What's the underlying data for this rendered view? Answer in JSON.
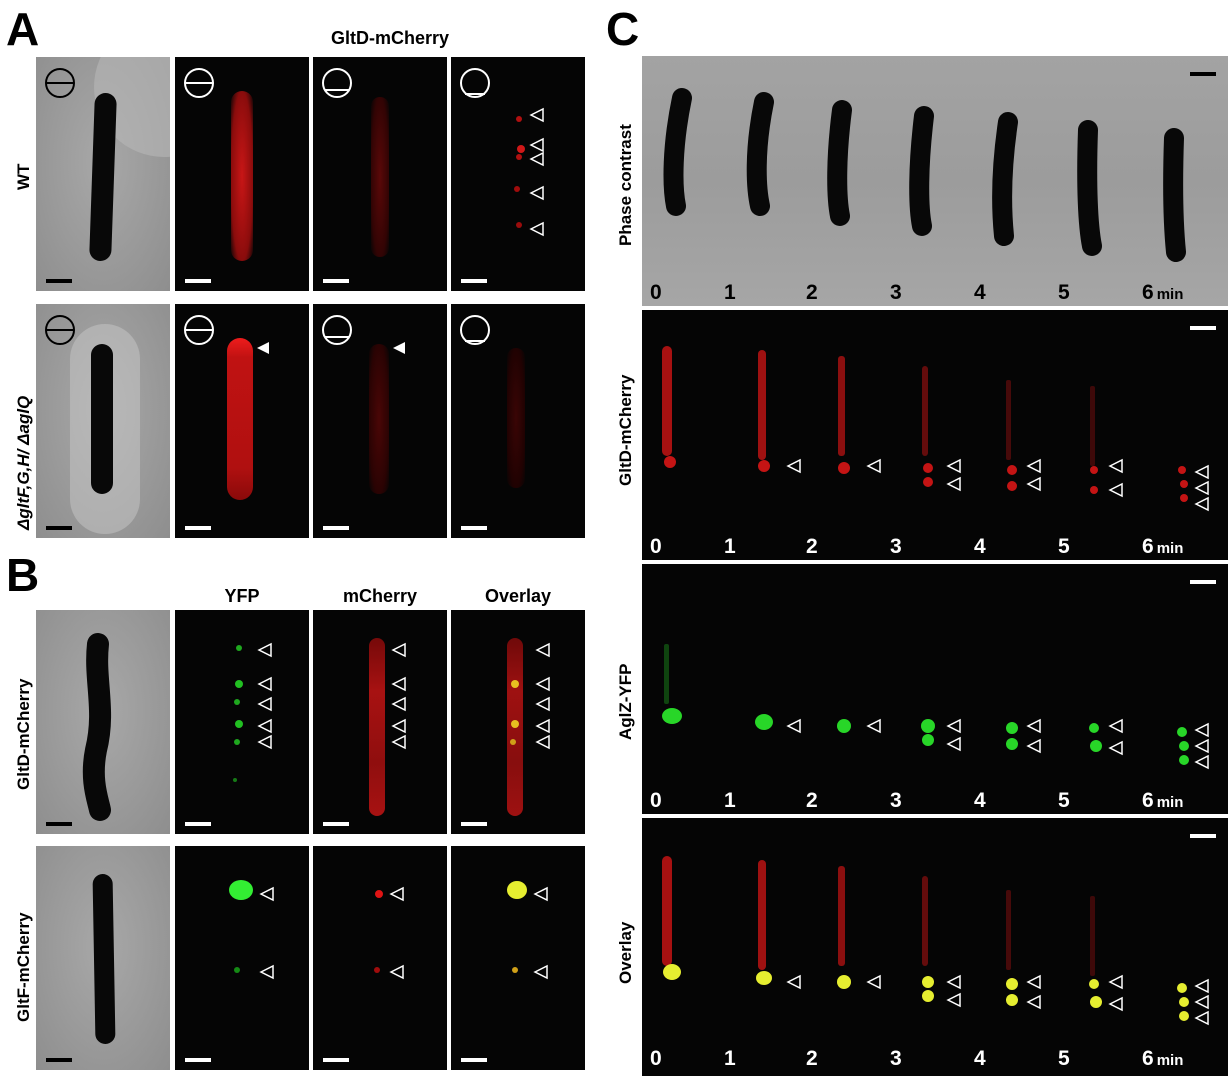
{
  "figure": {
    "panel_A": {
      "letter": "A",
      "column_header": "GltD-mCherry",
      "row_labels": [
        "WT",
        "ΔgltF,G,H/ ΔaglQ"
      ]
    },
    "panel_B": {
      "letter": "B",
      "column_headers": [
        "YFP",
        "mCherry",
        "Overlay"
      ],
      "row_labels": [
        "GltD-mCherry",
        "GltF-mCherry"
      ]
    },
    "panel_C": {
      "letter": "C",
      "row_labels": [
        "Phase contrast",
        "GltD-mCherry",
        "AglZ-YFP",
        "Overlay"
      ],
      "time_points": [
        "0",
        "1",
        "2",
        "3",
        "4",
        "5",
        "6"
      ],
      "time_unit": "min"
    },
    "colors": {
      "mcherry": "#e01010",
      "yfp": "#22cc22",
      "overlay": "#e8e020",
      "scalebar_light": "#ffffff",
      "scalebar_dark": "#000000"
    }
  }
}
